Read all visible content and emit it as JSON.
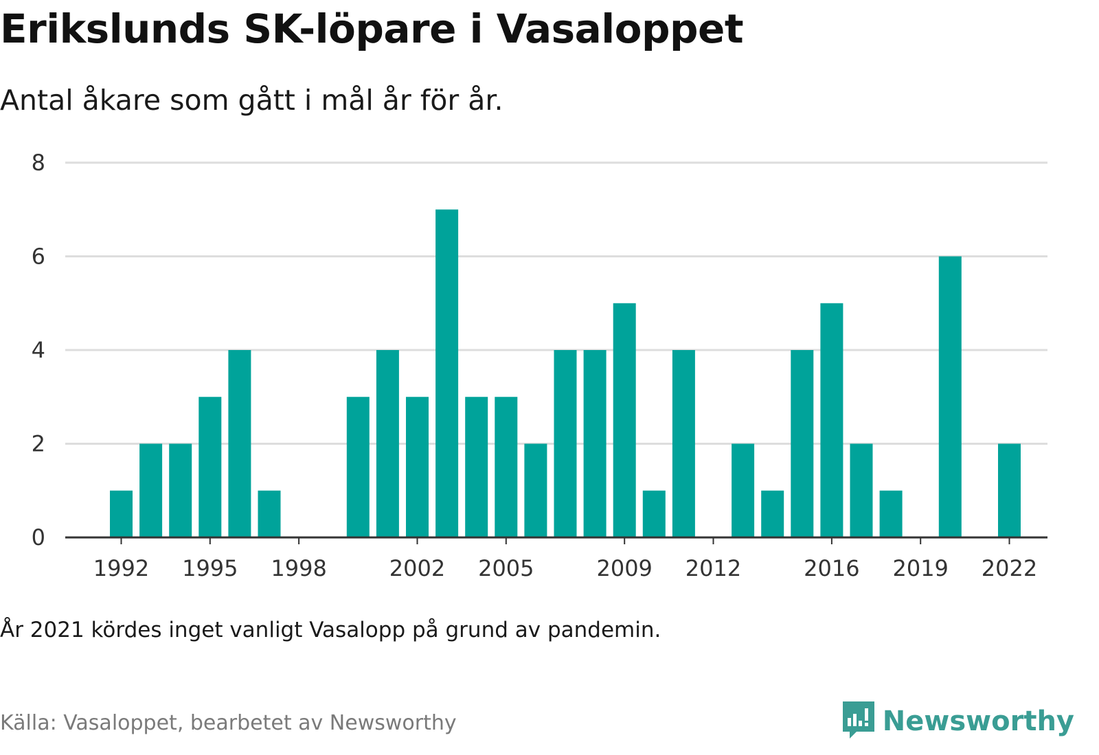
{
  "title": "Erikslunds SK-löpare i Vasaloppet",
  "subtitle": "Antal åkare som gått i mål år för år.",
  "note": "År 2021 kördes inget vanligt Vasalopp på grund av pandemin.",
  "source": "Källa: Vasaloppet, bearbetet av Newsworthy",
  "brand": {
    "name": "Newsworthy",
    "icon": "newsworthy-logo-icon"
  },
  "colors": {
    "bar": "#00a39a",
    "grid": "#dddddd",
    "axis": "#333333",
    "brand": "#3a9d94"
  },
  "chart_data": {
    "type": "bar",
    "x": [
      1992,
      1993,
      1994,
      1995,
      1996,
      1997,
      1998,
      1999,
      2000,
      2001,
      2002,
      2003,
      2004,
      2005,
      2006,
      2007,
      2008,
      2009,
      2010,
      2011,
      2012,
      2013,
      2014,
      2015,
      2016,
      2017,
      2018,
      2019,
      2020,
      2022
    ],
    "values": [
      1,
      2,
      2,
      3,
      4,
      1,
      0,
      0,
      3,
      4,
      3,
      7,
      3,
      3,
      2,
      4,
      4,
      5,
      1,
      4,
      0,
      2,
      1,
      4,
      5,
      2,
      1,
      0,
      6,
      2
    ],
    "x_tick_labels": [
      "1992",
      "1995",
      "1998",
      "2002",
      "2005",
      "2009",
      "2012",
      "2016",
      "2019",
      "2022"
    ],
    "y_ticks": [
      0,
      2,
      4,
      6,
      8
    ],
    "ylim": [
      0,
      8
    ],
    "grid": true,
    "title": "",
    "xlabel": "",
    "ylabel": ""
  }
}
